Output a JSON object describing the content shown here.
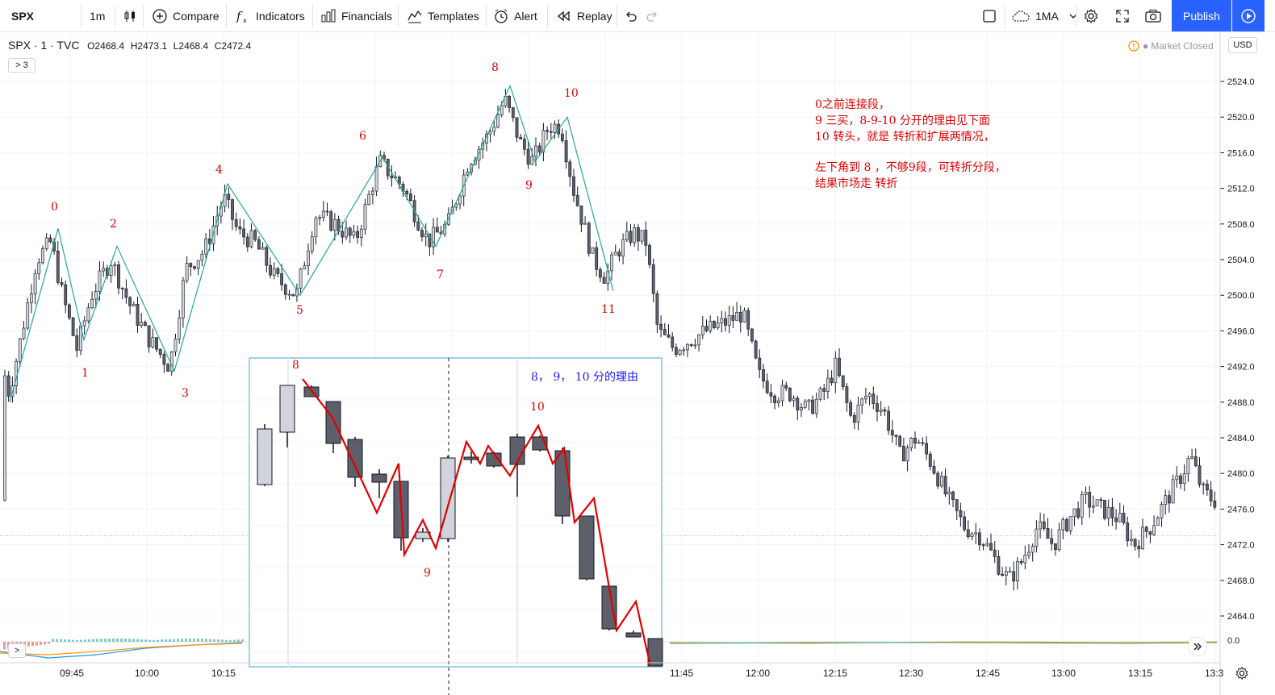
{
  "toolbar": {
    "symbol": "SPX",
    "interval": "1m",
    "compare": "Compare",
    "indicators": "Indicators",
    "financials": "Financials",
    "templates": "Templates",
    "alert": "Alert",
    "replay": "Replay",
    "ma_label": "1MA",
    "publish": "Publish"
  },
  "legend": {
    "symbol": "SPX · 1 · TVC",
    "open": "O2468.4",
    "high": "H2473.1",
    "low": "L2468.4",
    "close": "C2472.4",
    "indicator_count": "3"
  },
  "status": {
    "market": "Market Closed",
    "currency": "USD",
    "zero": "0.0"
  },
  "price_axis": [
    "2524.0",
    "2520.0",
    "2516.0",
    "2512.0",
    "2508.0",
    "2504.0",
    "2500.0",
    "2496.0",
    "2492.0",
    "2488.0",
    "2484.0",
    "2480.0",
    "2476.0",
    "2472.0",
    "2468.0",
    "2464.0"
  ],
  "time_axis": [
    "09:45",
    "10:00",
    "10:15",
    "11:45",
    "12:00",
    "12:15",
    "12:30",
    "12:45",
    "13:00",
    "13:15",
    "13:3"
  ],
  "stroke_labels": [
    "0",
    "1",
    "2",
    "3",
    "4",
    "5",
    "6",
    "7",
    "8",
    "9",
    "10",
    "11"
  ],
  "notes": {
    "line1": "0之前连接段，",
    "line2": "9 三买，8-9-10 分开的理由见下面",
    "line3": "10 转头，就是 转折和扩展两情况，",
    "line4": "",
    "line5": "左下角到 8 ，不够9段，可转折分段，",
    "line6": "结果市场走 转折"
  },
  "inset": {
    "title": "8， 9， 10 分的理由",
    "label_8": "8",
    "label_9": "9",
    "label_10": "10"
  },
  "colors": {
    "up": "#d1d4dc",
    "down": "#5d606b",
    "stroke_green": "#26a69a",
    "annotation_red": "#e00000",
    "inset_border": "#5ab4e0",
    "publish_blue": "#2962ff"
  },
  "chart_data": {
    "type": "candlestick",
    "y_axis": [
      2462,
      2526
    ],
    "stroke_points": [
      {
        "label": "0",
        "price": 2507.5
      },
      {
        "label": "1",
        "price": 2495
      },
      {
        "label": "2",
        "price": 2505.5
      },
      {
        "label": "3",
        "price": 2491.5
      },
      {
        "label": "4",
        "price": 2512.5
      },
      {
        "label": "5",
        "price": 2500
      },
      {
        "label": "6",
        "price": 2515.5
      },
      {
        "label": "7",
        "price": 2505.5
      },
      {
        "label": "8",
        "price": 2523.5
      },
      {
        "label": "9",
        "price": 2515
      },
      {
        "label": "10",
        "price": 2520
      },
      {
        "label": "11",
        "price": 2500.5
      }
    ]
  }
}
